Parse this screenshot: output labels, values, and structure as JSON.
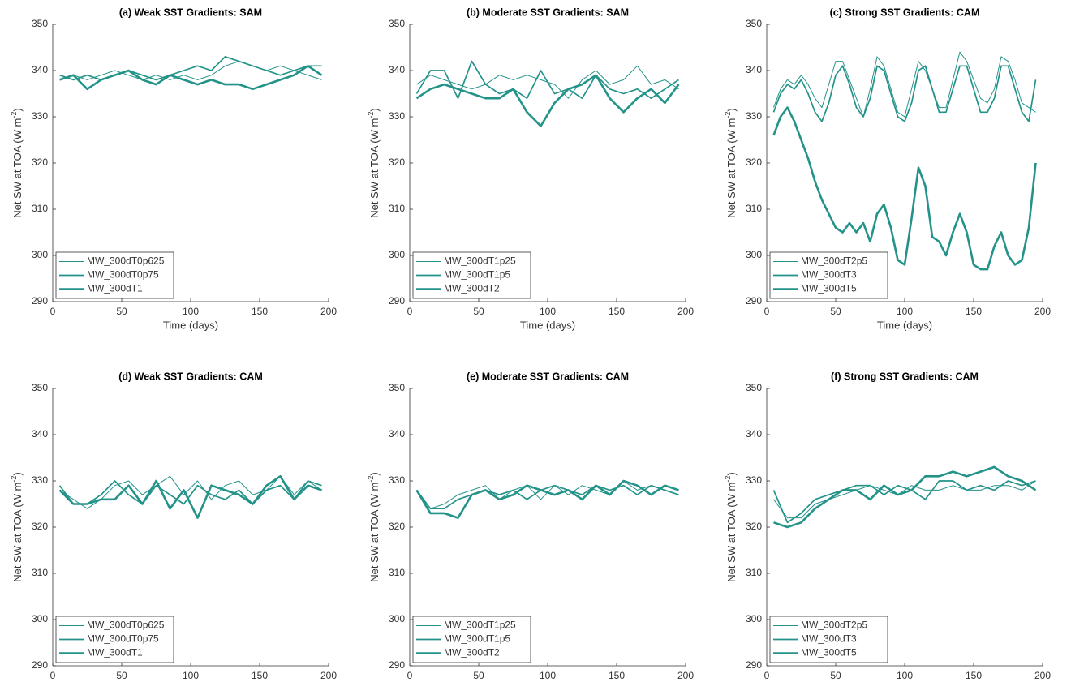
{
  "chart_data": [
    {
      "type": "line",
      "title": "(a) Weak SST Gradients: SAM",
      "xlabel": "Time (days)",
      "ylabel": [
        "Net SW at TOA (W m",
        "-2",
        ")"
      ],
      "x": [
        5,
        15,
        25,
        35,
        45,
        55,
        65,
        75,
        85,
        95,
        105,
        115,
        125,
        135,
        145,
        155,
        165,
        175,
        185,
        195
      ],
      "series": [
        {
          "name": "MW_300dT0p625",
          "color": "#23938a",
          "line_width": 1,
          "values": [
            338,
            339,
            338,
            339,
            340,
            339,
            338,
            339,
            338,
            339,
            338,
            339,
            341,
            342,
            341,
            340,
            341,
            340,
            339,
            338
          ]
        },
        {
          "name": "MW_300dT0p75",
          "color": "#23938a",
          "line_width": 1.7,
          "values": [
            339,
            338,
            339,
            338,
            339,
            340,
            339,
            338,
            339,
            340,
            341,
            340,
            343,
            342,
            341,
            340,
            339,
            340,
            341,
            341
          ]
        },
        {
          "name": "MW_300dT1",
          "color": "#23938a",
          "line_width": 2.6,
          "values": [
            338,
            339,
            336,
            338,
            339,
            340,
            338,
            337,
            339,
            338,
            337,
            338,
            337,
            337,
            336,
            337,
            338,
            339,
            341,
            339
          ]
        }
      ],
      "xlim": [
        0,
        200
      ],
      "ylim": [
        290,
        350
      ],
      "xticks": [
        0,
        50,
        100,
        150,
        200
      ],
      "yticks": [
        290,
        300,
        310,
        320,
        330,
        340,
        350
      ],
      "legend": "lower left"
    },
    {
      "type": "line",
      "title": "(b) Moderate SST Gradients: SAM",
      "xlabel": "Time (days)",
      "ylabel": [
        "Net SW at TOA (W m",
        "-2",
        ")"
      ],
      "x": [
        5,
        15,
        25,
        35,
        45,
        55,
        65,
        75,
        85,
        95,
        105,
        115,
        125,
        135,
        145,
        155,
        165,
        175,
        185,
        195
      ],
      "series": [
        {
          "name": "MW_300dT1p25",
          "color": "#23938a",
          "line_width": 1,
          "values": [
            337,
            339,
            338,
            337,
            336,
            337,
            339,
            338,
            339,
            338,
            337,
            334,
            338,
            340,
            337,
            338,
            341,
            337,
            338,
            336
          ]
        },
        {
          "name": "MW_300dT1p5",
          "color": "#23938a",
          "line_width": 1.7,
          "values": [
            335,
            340,
            340,
            334,
            342,
            337,
            335,
            336,
            334,
            340,
            335,
            336,
            334,
            339,
            336,
            335,
            336,
            334,
            336,
            338
          ]
        },
        {
          "name": "MW_300dT2",
          "color": "#23938a",
          "line_width": 2.6,
          "values": [
            334,
            336,
            337,
            336,
            335,
            334,
            334,
            336,
            331,
            328,
            333,
            336,
            337,
            339,
            334,
            331,
            334,
            336,
            333,
            337
          ]
        }
      ],
      "xlim": [
        0,
        200
      ],
      "ylim": [
        290,
        350
      ],
      "xticks": [
        0,
        50,
        100,
        150,
        200
      ],
      "yticks": [
        290,
        300,
        310,
        320,
        330,
        340,
        350
      ],
      "legend": "lower left"
    },
    {
      "type": "line",
      "title": "(c) Strong SST Gradients: CAM",
      "xlabel": "Time (days)",
      "ylabel": [
        "Net SW at TOA (W m",
        "-2",
        ")"
      ],
      "x": [
        5,
        10,
        15,
        20,
        25,
        30,
        35,
        40,
        45,
        50,
        55,
        60,
        65,
        70,
        75,
        80,
        85,
        90,
        95,
        100,
        105,
        110,
        115,
        120,
        125,
        130,
        135,
        140,
        145,
        150,
        155,
        160,
        165,
        170,
        175,
        180,
        185,
        190,
        195
      ],
      "series": [
        {
          "name": "MW_300dT2p5",
          "color": "#23938a",
          "line_width": 1,
          "values": [
            332,
            336,
            338,
            337,
            339,
            337,
            334,
            332,
            337,
            342,
            342,
            338,
            334,
            330,
            336,
            343,
            341,
            336,
            331,
            330,
            336,
            342,
            340,
            336,
            332,
            332,
            338,
            344,
            342,
            338,
            334,
            333,
            336,
            343,
            342,
            338,
            333,
            332,
            331
          ]
        },
        {
          "name": "MW_300dT3",
          "color": "#23938a",
          "line_width": 1.7,
          "values": [
            331,
            335,
            337,
            336,
            338,
            335,
            331,
            329,
            333,
            339,
            341,
            337,
            332,
            330,
            334,
            341,
            340,
            335,
            330,
            329,
            333,
            340,
            341,
            336,
            331,
            331,
            336,
            341,
            341,
            336,
            331,
            331,
            334,
            341,
            341,
            336,
            331,
            329,
            338
          ]
        },
        {
          "name": "MW_300dT5",
          "color": "#23938a",
          "line_width": 2.6,
          "values": [
            326,
            330,
            332,
            329,
            325,
            321,
            316,
            312,
            309,
            306,
            305,
            307,
            305,
            307,
            303,
            309,
            311,
            306,
            299,
            298,
            308,
            319,
            315,
            304,
            303,
            300,
            305,
            309,
            305,
            298,
            297,
            297,
            302,
            305,
            300,
            298,
            299,
            306,
            320
          ]
        }
      ],
      "xlim": [
        0,
        200
      ],
      "ylim": [
        290,
        350
      ],
      "xticks": [
        0,
        50,
        100,
        150,
        200
      ],
      "yticks": [
        290,
        300,
        310,
        320,
        330,
        340,
        350
      ],
      "legend": "lower left"
    },
    {
      "type": "line",
      "title": "(d) Weak SST Gradients: CAM",
      "xlabel": "Time (days)",
      "ylabel": [
        "Net SW at TOA (W m",
        "-2",
        ")"
      ],
      "x": [
        5,
        15,
        25,
        35,
        45,
        55,
        65,
        75,
        85,
        95,
        105,
        115,
        125,
        135,
        145,
        155,
        165,
        175,
        185,
        195
      ],
      "series": [
        {
          "name": "MW_300dT0p625",
          "color": "#23938a",
          "line_width": 1,
          "values": [
            328,
            326,
            324,
            326,
            329,
            330,
            327,
            329,
            331,
            327,
            330,
            326,
            329,
            330,
            327,
            328,
            331,
            327,
            330,
            328
          ]
        },
        {
          "name": "MW_300dT0p75",
          "color": "#23938a",
          "line_width": 1.7,
          "values": [
            329,
            325,
            325,
            327,
            330,
            327,
            325,
            329,
            327,
            325,
            329,
            327,
            326,
            328,
            325,
            328,
            329,
            326,
            330,
            329
          ]
        },
        {
          "name": "MW_300dT1",
          "color": "#23938a",
          "line_width": 2.6,
          "values": [
            328,
            325,
            325,
            326,
            326,
            329,
            325,
            330,
            324,
            328,
            322,
            329,
            328,
            327,
            325,
            329,
            331,
            326,
            329,
            328
          ]
        }
      ],
      "xlim": [
        0,
        200
      ],
      "ylim": [
        290,
        350
      ],
      "xticks": [
        0,
        50,
        100,
        150,
        200
      ],
      "yticks": [
        290,
        300,
        310,
        320,
        330,
        340,
        350
      ],
      "legend": "lower left"
    },
    {
      "type": "line",
      "title": "(e) Moderate SST Gradients: CAM",
      "xlabel": "Time (days)",
      "ylabel": [
        "Net SW at TOA (W m",
        "-2",
        ")"
      ],
      "x": [
        5,
        15,
        25,
        35,
        45,
        55,
        65,
        75,
        85,
        95,
        105,
        115,
        125,
        135,
        145,
        155,
        165,
        175,
        185,
        195
      ],
      "series": [
        {
          "name": "MW_300dT1p25",
          "color": "#23938a",
          "line_width": 1,
          "values": [
            328,
            324,
            325,
            327,
            328,
            329,
            326,
            328,
            329,
            326,
            329,
            327,
            329,
            328,
            327,
            330,
            328,
            329,
            328,
            327
          ]
        },
        {
          "name": "MW_300dT1p5",
          "color": "#23938a",
          "line_width": 1.7,
          "values": [
            328,
            324,
            324,
            326,
            327,
            328,
            327,
            328,
            326,
            328,
            329,
            328,
            327,
            329,
            328,
            329,
            327,
            329,
            328,
            327
          ]
        },
        {
          "name": "MW_300dT2",
          "color": "#23938a",
          "line_width": 2.6,
          "values": [
            328,
            323,
            323,
            322,
            327,
            328,
            326,
            327,
            329,
            328,
            327,
            328,
            326,
            329,
            327,
            330,
            329,
            327,
            329,
            328
          ]
        }
      ],
      "xlim": [
        0,
        200
      ],
      "ylim": [
        290,
        350
      ],
      "xticks": [
        0,
        50,
        100,
        150,
        200
      ],
      "yticks": [
        290,
        300,
        310,
        320,
        330,
        340,
        350
      ],
      "legend": "lower left"
    },
    {
      "type": "line",
      "title": "(f) Strong SST Gradients: CAM",
      "xlabel": "Time (days)",
      "ylabel": [
        "Net SW at TOA (W m",
        "-2",
        ")"
      ],
      "x": [
        5,
        15,
        25,
        35,
        45,
        55,
        65,
        75,
        85,
        95,
        105,
        115,
        125,
        135,
        145,
        155,
        165,
        175,
        185,
        195
      ],
      "series": [
        {
          "name": "MW_300dT2p5",
          "color": "#23938a",
          "line_width": 1,
          "values": [
            326,
            322,
            322,
            325,
            326,
            327,
            328,
            329,
            328,
            327,
            329,
            328,
            328,
            329,
            328,
            328,
            329,
            329,
            328,
            330
          ]
        },
        {
          "name": "MW_300dT3",
          "color": "#23938a",
          "line_width": 1.7,
          "values": [
            328,
            321,
            323,
            326,
            327,
            328,
            329,
            329,
            327,
            329,
            328,
            326,
            330,
            330,
            328,
            329,
            328,
            330,
            329,
            330
          ]
        },
        {
          "name": "MW_300dT5",
          "color": "#23938a",
          "line_width": 2.6,
          "values": [
            321,
            320,
            321,
            324,
            326,
            328,
            328,
            326,
            329,
            327,
            328,
            331,
            331,
            332,
            331,
            332,
            333,
            331,
            330,
            328
          ]
        }
      ],
      "xlim": [
        0,
        200
      ],
      "ylim": [
        290,
        350
      ],
      "xticks": [
        0,
        50,
        100,
        150,
        200
      ],
      "yticks": [
        290,
        300,
        310,
        320,
        330,
        340,
        350
      ],
      "legend": "lower left"
    }
  ]
}
